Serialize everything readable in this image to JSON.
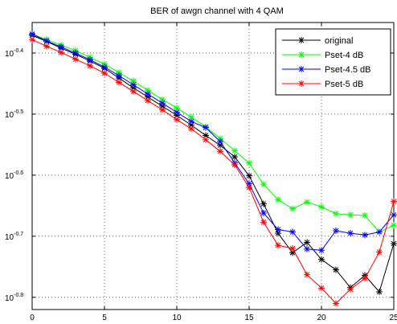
{
  "chart_data": {
    "type": "line",
    "title": "BER of awgn channel  with  4 QAM",
    "xlabel": "",
    "ylabel": "",
    "x_range": [
      0,
      25
    ],
    "y_scale": "log",
    "y_range_log10": [
      -0.82,
      -0.35
    ],
    "grid": "dotted",
    "legend_position": "top-right",
    "x_ticks": [
      0,
      5,
      10,
      15,
      20,
      25
    ],
    "x_tick_labels": [
      "0",
      "5",
      "10",
      "15",
      "20",
      "25"
    ],
    "y_ticks_exponent": [
      -0.4,
      -0.5,
      -0.6,
      -0.7,
      -0.8
    ],
    "y_tick_bases": [
      "10",
      "10",
      "10",
      "10",
      "10"
    ],
    "y_tick_exponents": [
      "-0.4",
      "-0.5",
      "-0.6",
      "-0.7",
      "-0.8"
    ],
    "x": [
      0,
      1,
      2,
      3,
      4,
      5,
      6,
      7,
      8,
      9,
      10,
      11,
      12,
      13,
      14,
      15,
      16,
      17,
      18,
      19,
      20,
      21,
      22,
      23,
      24,
      25
    ],
    "series": [
      {
        "name": "original",
        "color": "#000000",
        "log10_values": [
          -0.371,
          -0.381,
          -0.392,
          -0.402,
          -0.413,
          -0.425,
          -0.441,
          -0.457,
          -0.472,
          -0.487,
          -0.502,
          -0.518,
          -0.535,
          -0.551,
          -0.57,
          -0.601,
          -0.647,
          -0.695,
          -0.727,
          -0.71,
          -0.738,
          -0.755,
          -0.784,
          -0.764,
          -0.791,
          -0.712
        ]
      },
      {
        "name": "Pset-4 dB",
        "color": "#00ff00",
        "log10_values": [
          -0.369,
          -0.378,
          -0.387,
          -0.396,
          -0.407,
          -0.418,
          -0.432,
          -0.446,
          -0.461,
          -0.476,
          -0.49,
          -0.505,
          -0.521,
          -0.54,
          -0.56,
          -0.58,
          -0.615,
          -0.64,
          -0.655,
          -0.644,
          -0.652,
          -0.663,
          -0.665,
          -0.666,
          -0.693,
          -0.682
        ]
      },
      {
        "name": "Pset-4.5 dB",
        "color": "#0000ff",
        "log10_values": [
          -0.369,
          -0.38,
          -0.39,
          -0.4,
          -0.411,
          -0.423,
          -0.437,
          -0.452,
          -0.467,
          -0.482,
          -0.497,
          -0.512,
          -0.522,
          -0.545,
          -0.58,
          -0.614,
          -0.662,
          -0.689,
          -0.693,
          -0.721,
          -0.723,
          -0.691,
          -0.695,
          -0.698,
          -0.693,
          -0.665
        ]
      },
      {
        "name": "Pset-5 dB",
        "color": "#ff0000",
        "log10_values": [
          -0.378,
          -0.389,
          -0.399,
          -0.41,
          -0.421,
          -0.433,
          -0.448,
          -0.463,
          -0.478,
          -0.493,
          -0.509,
          -0.524,
          -0.542,
          -0.561,
          -0.583,
          -0.62,
          -0.677,
          -0.715,
          -0.72,
          -0.763,
          -0.785,
          -0.81,
          -0.787,
          -0.769,
          -0.726,
          -0.643
        ]
      }
    ]
  }
}
